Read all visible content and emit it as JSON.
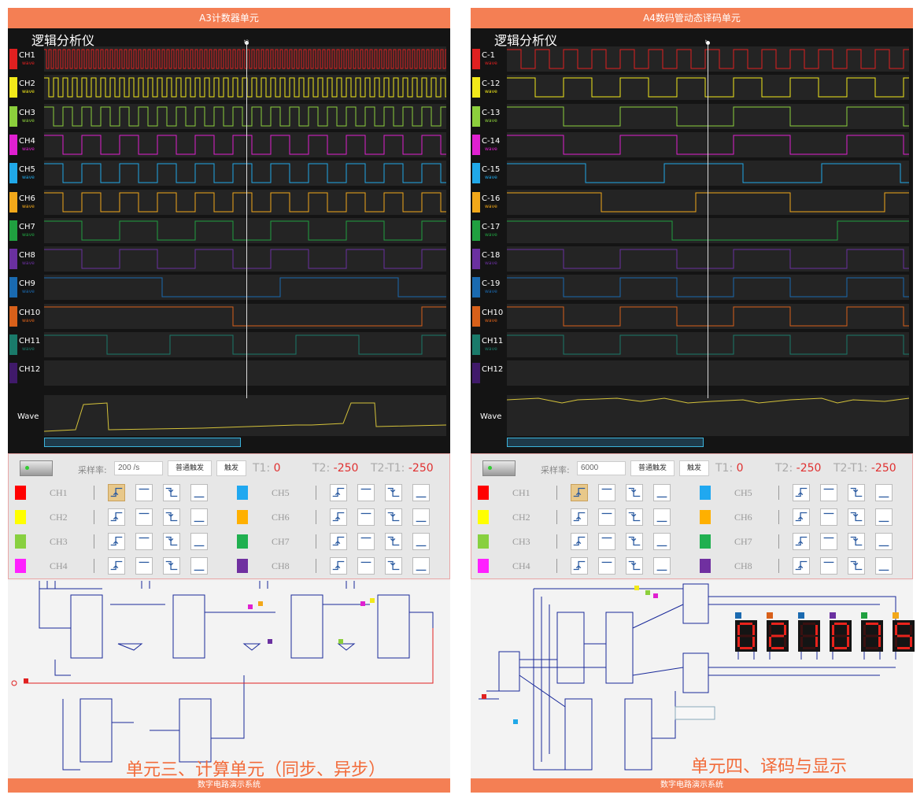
{
  "left": {
    "title": "A3计数器单元",
    "analyzer_title": "逻辑分析仪",
    "cursor_label": "t2",
    "channels": [
      {
        "name": "CH1",
        "sub": "wave",
        "color": "#e02020",
        "period": 6
      },
      {
        "name": "CH2",
        "sub": "wave",
        "color": "#f2e91a",
        "period": 12
      },
      {
        "name": "CH3",
        "sub": "wave",
        "color": "#8ccf3c",
        "period": 24
      },
      {
        "name": "CH4",
        "sub": "wave",
        "color": "#e020d0",
        "period": 48
      },
      {
        "name": "CH5",
        "sub": "wave",
        "color": "#20a8e8",
        "period": 48
      },
      {
        "name": "CH6",
        "sub": "wave",
        "color": "#f2a81a",
        "period": 48
      },
      {
        "name": "CH7",
        "sub": "wave",
        "color": "#20a040",
        "period": 96
      },
      {
        "name": "CH8",
        "sub": "wave",
        "color": "#6a30a0",
        "period": 96
      },
      {
        "name": "CH9",
        "sub": "wave",
        "color": "#1a6ab0",
        "period": 300
      },
      {
        "name": "CH10",
        "sub": "wave",
        "color": "#d8601a",
        "period": 480
      },
      {
        "name": "CH11",
        "sub": "wave",
        "color": "#1a7a6a",
        "period": 160
      },
      {
        "name": "CH12",
        "sub": "",
        "color": "#401a6a",
        "period": 0
      }
    ],
    "wave_label": "Wave",
    "sample_label": "采样率:",
    "sample_value": "200 /s",
    "normal_trigger": "普通触发",
    "single_trigger": "触发",
    "t1_label": "T1:",
    "t1_value": "0",
    "t2_label": "T2:",
    "t2_value": "-250",
    "t21_label": "T2-T1:",
    "t21_value": "-250",
    "trigger_config": [
      {
        "name": "CH1",
        "color": "#ff0000"
      },
      {
        "name": "CH2",
        "color": "#ffff00"
      },
      {
        "name": "CH3",
        "color": "#88d040"
      },
      {
        "name": "CH4",
        "color": "#ff20ff"
      },
      {
        "name": "CH5",
        "color": "#20a8f0"
      },
      {
        "name": "CH6",
        "color": "#ffb000"
      },
      {
        "name": "CH7",
        "color": "#20b050"
      },
      {
        "name": "CH8",
        "color": "#7030a0"
      }
    ],
    "overlay": "单元三、计算单元（同步、异步）",
    "footer": "数字电路演示系统"
  },
  "right": {
    "title": "A4数码管动态译码单元",
    "analyzer_title": "逻辑分析仪",
    "cursor_label": "t",
    "channels": [
      {
        "name": "C-1",
        "sub": "wave",
        "color": "#e02020",
        "period": 36
      },
      {
        "name": "C-12",
        "sub": "wave",
        "color": "#f2e91a",
        "period": 72
      },
      {
        "name": "C-13",
        "sub": "wave",
        "color": "#8ccf3c",
        "period": 144
      },
      {
        "name": "C-14",
        "sub": "wave",
        "color": "#e020d0",
        "period": 144
      },
      {
        "name": "C-15",
        "sub": "wave",
        "color": "#20a8e8",
        "period": 200
      },
      {
        "name": "C-16",
        "sub": "wave",
        "color": "#f2a81a",
        "period": 240
      },
      {
        "name": "C-17",
        "sub": "wave",
        "color": "#20a040",
        "period": 420
      },
      {
        "name": "C-18",
        "sub": "wave",
        "color": "#6a30a0",
        "period": 144
      },
      {
        "name": "C-19",
        "sub": "wave",
        "color": "#1a6ab0",
        "period": 144
      },
      {
        "name": "CH10",
        "sub": "wave",
        "color": "#d8601a",
        "period": 144
      },
      {
        "name": "CH11",
        "sub": "wave",
        "color": "#1a7a6a",
        "period": 144
      },
      {
        "name": "CH12",
        "sub": "",
        "color": "#401a6a",
        "period": 0
      }
    ],
    "wave_label": "Wave",
    "sample_label": "采样率:",
    "sample_value": "6000",
    "normal_trigger": "普通触发",
    "single_trigger": "触发",
    "t1_label": "T1:",
    "t1_value": "0",
    "t2_label": "T2:",
    "t2_value": "-250",
    "t21_label": "T2-T1:",
    "t21_value": "-250",
    "trigger_config": [
      {
        "name": "CH1",
        "color": "#ff0000"
      },
      {
        "name": "CH2",
        "color": "#ffff00"
      },
      {
        "name": "CH3",
        "color": "#88d040"
      },
      {
        "name": "CH4",
        "color": "#ff20ff"
      },
      {
        "name": "CH5",
        "color": "#20a8f0"
      },
      {
        "name": "CH6",
        "color": "#ffb000"
      },
      {
        "name": "CH7",
        "color": "#20b050"
      },
      {
        "name": "CH8",
        "color": "#7030a0"
      }
    ],
    "digits": [
      "0",
      "2",
      "1",
      "0",
      "7",
      "5"
    ],
    "digit_tags": [
      "#1a6ab0",
      "#d8601a",
      "#1a6ab0",
      "#6a30a0",
      "#20a040",
      "#f2a81a"
    ],
    "overlay": "单元四、译码与显示",
    "footer": "数字电路演示系统"
  }
}
